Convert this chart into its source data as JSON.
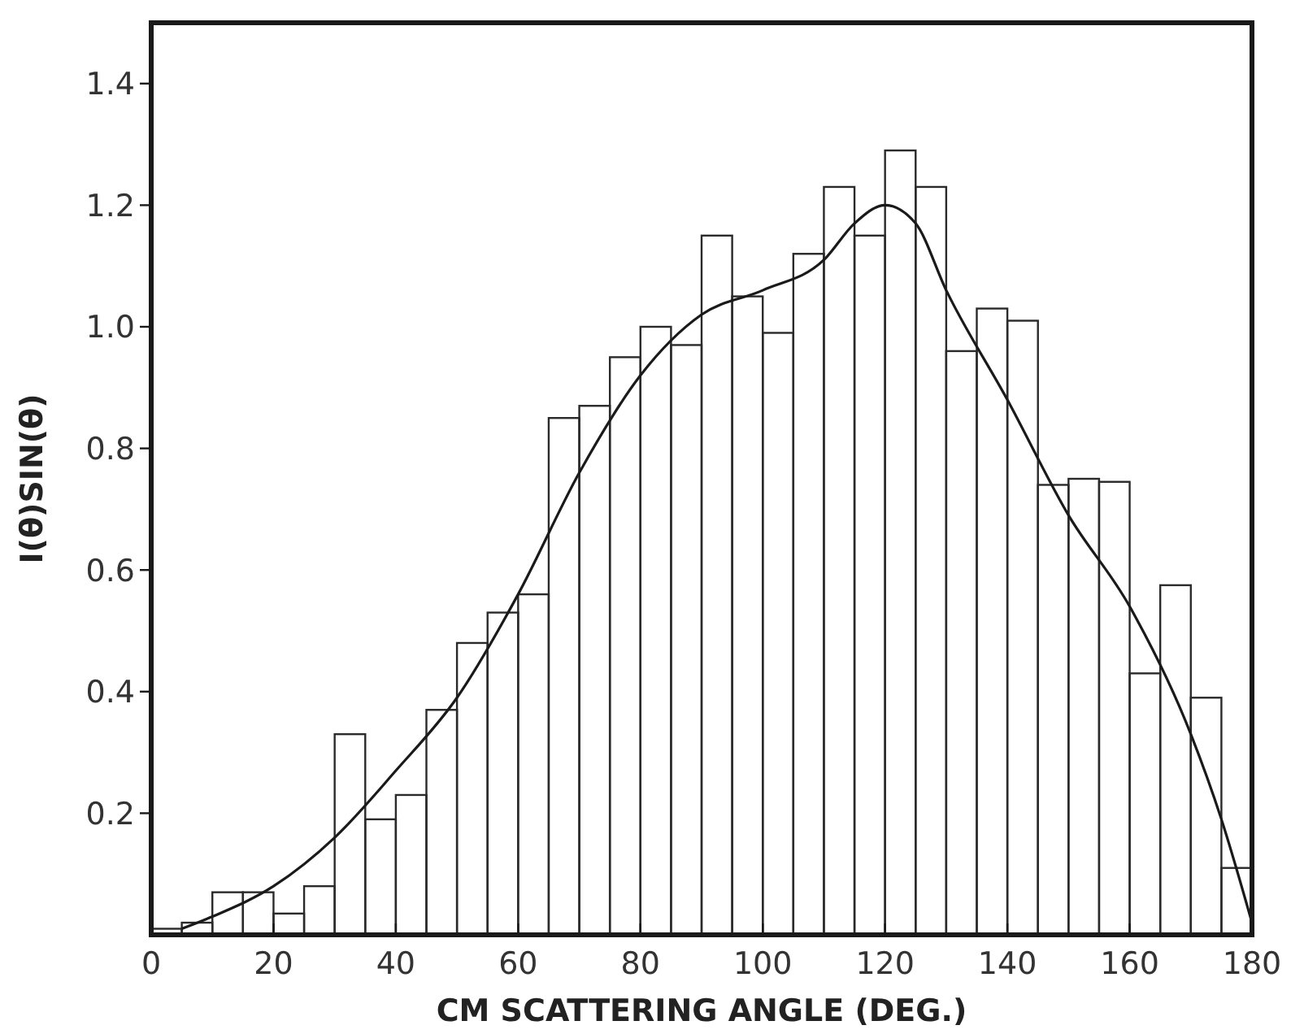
{
  "chart_data": {
    "type": "histogram",
    "xlabel": "CM SCATTERING ANGLE (DEG.)",
    "ylabel": "I(θ)SIN(θ)",
    "color": "#2a2a2a",
    "bins": [
      0,
      5,
      10,
      15,
      20,
      25,
      30,
      35,
      40,
      45,
      50,
      55,
      60,
      65,
      70,
      75,
      80,
      85,
      90,
      95,
      100,
      105,
      110,
      115,
      120,
      125,
      130,
      135,
      140,
      145,
      150,
      155,
      160,
      165,
      170,
      175,
      180
    ],
    "values": [
      0.01,
      0.02,
      0.07,
      0.07,
      0.035,
      0.08,
      0.33,
      0.19,
      0.23,
      0.37,
      0.48,
      0.53,
      0.56,
      0.85,
      0.87,
      0.95,
      1.0,
      0.97,
      1.15,
      1.05,
      0.99,
      1.12,
      1.23,
      1.15,
      1.29,
      1.23,
      0.96,
      1.03,
      1.01,
      0.74,
      0.75,
      0.745,
      0.43,
      0.575,
      0.39,
      0.11
    ],
    "series": [
      {
        "type": "line",
        "color": "#1a1a1a",
        "x": [
          5,
          10,
          20,
          30,
          40,
          50,
          60,
          70,
          80,
          90,
          100,
          110,
          115,
          120,
          125,
          130,
          140,
          150,
          160,
          170,
          175,
          180
        ],
        "values": [
          0.01,
          0.03,
          0.08,
          0.16,
          0.27,
          0.39,
          0.56,
          0.76,
          0.92,
          1.02,
          1.06,
          1.11,
          1.17,
          1.2,
          1.17,
          1.06,
          0.88,
          0.69,
          0.54,
          0.33,
          0.19,
          0.02
        ]
      }
    ],
    "xlim": [
      0,
      180
    ],
    "xticks": [
      0,
      20,
      40,
      60,
      80,
      100,
      120,
      140,
      160,
      180
    ],
    "ylim": [
      0,
      1.5
    ],
    "yticks": [
      0.2,
      0.4,
      0.6,
      0.8,
      {
        "value": 1.0,
        "label": "1.0"
      },
      1.2,
      1.4
    ],
    "grid": false
  }
}
